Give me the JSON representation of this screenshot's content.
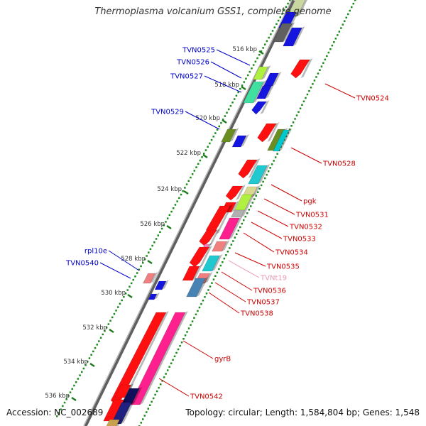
{
  "title": "Thermoplasma volcanium GSS1, complete genome",
  "accession_text": "Accession: NC_002689",
  "summary_text": "Topology: circular; Length: 1,584,804 bp; Genes: 1,548",
  "colors": {
    "forward_label": "#0000cc",
    "reverse_label": "#cc0000",
    "trna_label": "#e899b3",
    "backbone": "#808080",
    "tick": "#1f7a1f",
    "dot": "#1a8a1a"
  },
  "scale_ticks": [
    {
      "label": "516 kbp",
      "kbp": 516
    },
    {
      "label": "518 kbp",
      "kbp": 518
    },
    {
      "label": "520 kbp",
      "kbp": 520
    },
    {
      "label": "522 kbp",
      "kbp": 522
    },
    {
      "label": "524 kbp",
      "kbp": 524
    },
    {
      "label": "526 kbp",
      "kbp": 526
    },
    {
      "label": "528 kbp",
      "kbp": 528
    },
    {
      "label": "530 kbp",
      "kbp": 530
    },
    {
      "label": "532 kbp",
      "kbp": 532
    },
    {
      "label": "534 kbp",
      "kbp": 534
    },
    {
      "label": "536 kbp",
      "kbp": 536
    }
  ],
  "gene_labels_forward": [
    "TVN0525",
    "TVN0526",
    "TVN0527",
    "TVN0529",
    "rpl10e",
    "TVN0540"
  ],
  "gene_labels_reverse": [
    "TVN0524",
    "TVN0528",
    "pgk",
    "TVN0531",
    "TVN0532",
    "TVN0533",
    "TVN0534",
    "TVN0535",
    "TVN0536",
    "TVN0537",
    "TVN0538",
    "gyrB",
    "TVN0542"
  ],
  "gene_labels_rna": [
    "TVNt19"
  ]
}
